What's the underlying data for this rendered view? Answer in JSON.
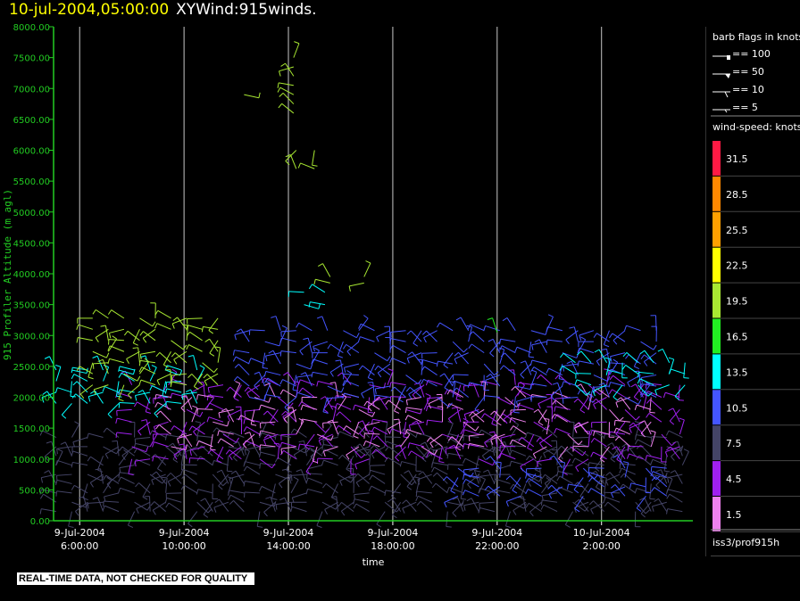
{
  "header": {
    "timestamp": "10-jul-2004,05:00:00",
    "title": "XYWind:915winds."
  },
  "footer": {
    "notice": "REAL-TIME DATA, NOT CHECKED FOR QUALITY"
  },
  "legend": {
    "barb_title": "barb flags in knots",
    "barb_items": [
      "== 100",
      "== 50",
      "== 10",
      "== 5"
    ],
    "speed_title": "wind-speed: knots",
    "speed_scale": [
      {
        "label": "31.5",
        "color": "#ff1a44"
      },
      {
        "label": "28.5",
        "color": "#ff8800"
      },
      {
        "label": "25.5",
        "color": "#ffa000"
      },
      {
        "label": "22.5",
        "color": "#ffff00"
      },
      {
        "label": "19.5",
        "color": "#a8e832"
      },
      {
        "label": "16.5",
        "color": "#22ee22"
      },
      {
        "label": "13.5",
        "color": "#00ffff"
      },
      {
        "label": "10.5",
        "color": "#4455ff"
      },
      {
        "label": "7.5",
        "color": "#444466"
      },
      {
        "label": "4.5",
        "color": "#a020f0"
      },
      {
        "label": "1.5",
        "color": "#ee82ee"
      }
    ],
    "source": "iss3/prof915h"
  },
  "chart_data": {
    "type": "scatter",
    "ylabel": "915 Profiler Altitude (m agl)",
    "xlabel": "time",
    "ylim": [
      0,
      8000
    ],
    "yticks": [
      "0.00",
      "500.00",
      "1000.00",
      "1500.00",
      "2000.00",
      "2500.00",
      "3000.00",
      "3500.00",
      "4000.00",
      "4500.00",
      "5000.00",
      "5500.00",
      "6000.00",
      "6500.00",
      "7000.00",
      "7500.00",
      "8000.00"
    ],
    "xlim_hours_from_0600_jul9": [
      -1.0,
      23.5
    ],
    "xticks": [
      {
        "date": "9-Jul-2004",
        "time": "6:00:00"
      },
      {
        "date": "9-Jul-2004",
        "time": "10:00:00"
      },
      {
        "date": "9-Jul-2004",
        "time": "14:00:00"
      },
      {
        "date": "9-Jul-2004",
        "time": "18:00:00"
      },
      {
        "date": "9-Jul-2004",
        "time": "22:00:00"
      },
      {
        "date": "10-Jul-2004",
        "time": "2:00:00"
      }
    ],
    "vertical_grid": true,
    "barb_dir_sequence_deg": [
      300,
      285,
      270,
      320,
      250,
      20,
      340,
      230,
      300,
      200,
      120,
      290
    ],
    "series": [
      {
        "t0": -0.9,
        "t1": 23.3,
        "dt": 0.6,
        "z0": 150,
        "z1": 1350,
        "dz": 150,
        "color": "#444466"
      },
      {
        "t0": 2.0,
        "t1": 23.0,
        "dt": 0.7,
        "z0": 1000,
        "z1": 2200,
        "dz": 200,
        "color": "#a020f0"
      },
      {
        "t0": 3.5,
        "t1": 22.0,
        "dt": 0.8,
        "z0": 1200,
        "z1": 2000,
        "dz": 200,
        "color": "#ee82ee"
      },
      {
        "t0": 6.5,
        "t1": 22.5,
        "dt": 0.6,
        "z0": 2000,
        "z1": 3100,
        "dz": 180,
        "color": "#4455ff"
      },
      {
        "t0": 14.5,
        "t1": 22.5,
        "dt": 0.8,
        "z0": 400,
        "z1": 900,
        "dz": 150,
        "color": "#4455ff"
      },
      {
        "t0": -0.9,
        "t1": 4.5,
        "dt": 0.6,
        "z0": 1900,
        "z1": 2500,
        "dz": 180,
        "color": "#00ffff"
      },
      {
        "t0": 0.5,
        "t1": 5.5,
        "dt": 0.6,
        "z0": 2200,
        "z1": 3300,
        "dz": 180,
        "color": "#a8e832"
      },
      {
        "t0": 19.0,
        "t1": 23.3,
        "dt": 0.6,
        "z0": 2200,
        "z1": 2700,
        "dz": 180,
        "color": "#00ffff"
      },
      {
        "t0": 6.3,
        "t1": 6.5,
        "dt": 0.5,
        "z0": 6900,
        "z1": 7000,
        "dz": 200,
        "color": "#a8e832"
      },
      {
        "t0": 8.2,
        "t1": 8.4,
        "dt": 0.3,
        "z0": 6600,
        "z1": 7600,
        "dz": 150,
        "color": "#a8e832"
      },
      {
        "t0": 8.3,
        "t1": 9.6,
        "dt": 0.7,
        "z0": 5700,
        "z1": 6100,
        "dz": 300,
        "color": "#a8e832"
      },
      {
        "t0": 8.6,
        "t1": 9.4,
        "dt": 0.8,
        "z0": 3500,
        "z1": 3700,
        "dz": 200,
        "color": "#00ffff"
      },
      {
        "t0": 9.6,
        "t1": 11.0,
        "dt": 1.3,
        "z0": 3850,
        "z1": 3950,
        "dz": 100,
        "color": "#a8e832"
      },
      {
        "t0": 16.0,
        "t1": 16.3,
        "dt": 0.5,
        "z0": 3050,
        "z1": 3100,
        "dz": 100,
        "color": "#22ee22"
      }
    ]
  }
}
